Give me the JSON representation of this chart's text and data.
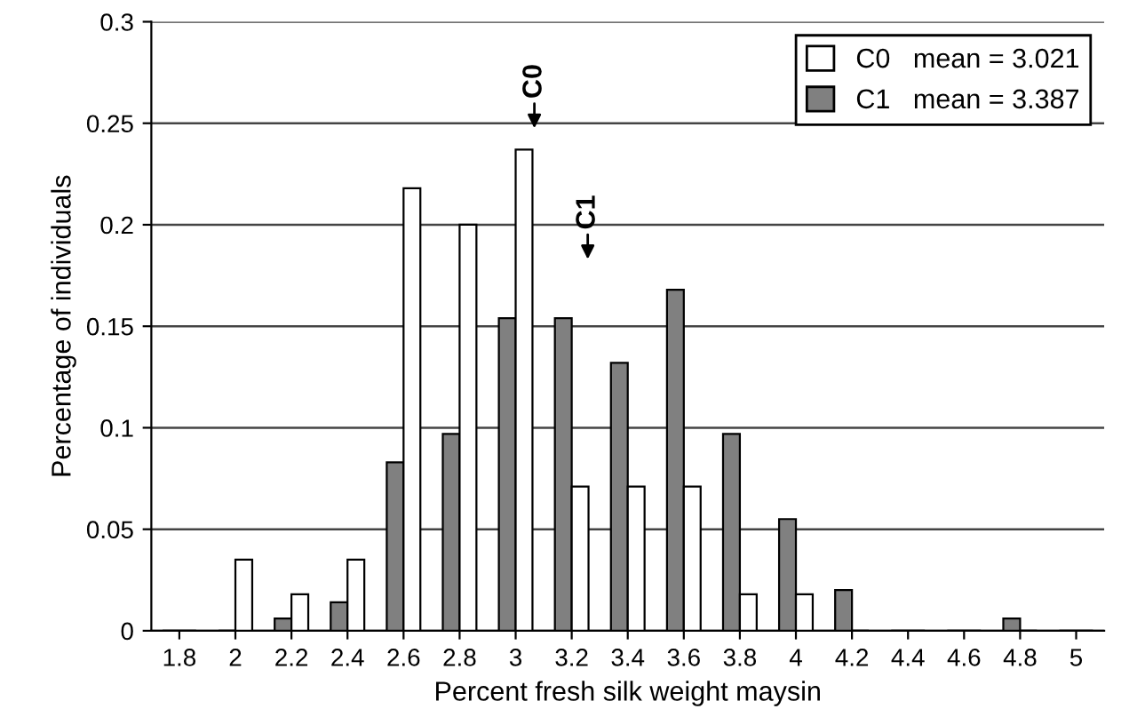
{
  "chart_data": {
    "type": "bar",
    "xlabel": "Percent fresh silk weight maysin",
    "ylabel": "Percentage of individuals",
    "categories": [
      "1.8",
      "2",
      "2.2",
      "2.4",
      "2.6",
      "2.8",
      "3",
      "3.2",
      "3.4",
      "3.6",
      "3.8",
      "4",
      "4.2",
      "4.4",
      "4.6",
      "4.8",
      "5"
    ],
    "series": [
      {
        "name": "C1   mean = 3.387",
        "color": "#808080",
        "values": [
          0,
          0,
          0.006,
          0.014,
          0.083,
          0.097,
          0.154,
          0.154,
          0.132,
          0.168,
          0.097,
          0.055,
          0.02,
          0,
          0,
          0.006,
          0
        ]
      },
      {
        "name": "C0   mean = 3.021",
        "color": "#ffffff",
        "values": [
          0,
          0.035,
          0.018,
          0.035,
          0.218,
          0.2,
          0.237,
          0.071,
          0.071,
          0.071,
          0.018,
          0.018,
          0,
          0,
          0,
          0,
          0
        ]
      }
    ],
    "ylim": [
      0,
      0.3
    ],
    "yticks": [
      0,
      0.05,
      0.1,
      0.15,
      0.2,
      0.25,
      0.3
    ],
    "grid": "y",
    "legend": "top right",
    "annotations": [
      "C0",
      "C1"
    ]
  }
}
